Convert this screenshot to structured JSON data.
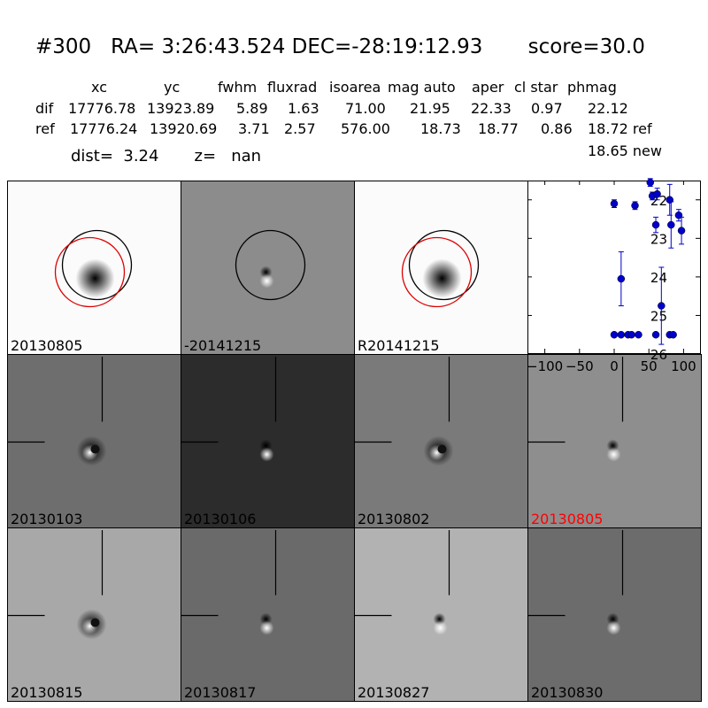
{
  "header": {
    "title": "#300   RA= 3:26:43.524 DEC=-28:19:12.93       score=30.0",
    "columns": [
      "xc",
      "yc",
      "fwhm",
      "fluxrad",
      "isoarea",
      "mag auto",
      "aper",
      "cl star",
      "phmag"
    ],
    "dif_label": "dif",
    "dif": [
      "17776.78",
      "13923.89",
      "5.89",
      "1.63",
      "71.00",
      "21.95",
      "22.33",
      "0.97",
      "22.12"
    ],
    "ref_label": "ref",
    "ref": [
      "17776.24",
      "13920.69",
      "3.71",
      "2.57",
      "576.00",
      "18.73",
      "18.77",
      "0.86",
      "18.72 ref"
    ],
    "phmag_new": "18.65 new",
    "dist_text": "dist=  3.24       z=   nan"
  },
  "stamps": {
    "top": [
      {
        "label": "20130805",
        "bg": "#fbfbfb",
        "type": "ref",
        "circles": [
          "black",
          "red"
        ]
      },
      {
        "label": "-20141215",
        "bg": "#8c8c8c",
        "type": "dipole",
        "circles": [
          "black"
        ]
      },
      {
        "label": "R20141215",
        "bg": "#fbfbfb",
        "type": "ref",
        "circles": [
          "black",
          "red"
        ]
      }
    ],
    "grid": [
      {
        "label": "20130103",
        "bg": "#6e6e6e",
        "type": "ring",
        "label_color": "#000000"
      },
      {
        "label": "20130106",
        "bg": "#2c2c2c",
        "type": "dipole",
        "label_color": "#000000"
      },
      {
        "label": "20130802",
        "bg": "#7a7a7a",
        "type": "ring",
        "label_color": "#000000"
      },
      {
        "label": "20130805",
        "bg": "#8e8e8e",
        "type": "dipole",
        "label_color": "#ff0000"
      },
      {
        "label": "20130815",
        "bg": "#a8a8a8",
        "type": "ring",
        "label_color": "#000000"
      },
      {
        "label": "20130817",
        "bg": "#6a6a6a",
        "type": "dipole",
        "label_color": "#000000"
      },
      {
        "label": "20130827",
        "bg": "#b2b2b2",
        "type": "dipole",
        "label_color": "#000000"
      },
      {
        "label": "20130830",
        "bg": "#6c6c6c",
        "type": "dipole",
        "label_color": "#000000"
      }
    ]
  },
  "chart_data": {
    "type": "scatter",
    "title": "",
    "xlabel": "",
    "ylabel": "",
    "xlim": [
      -125,
      125
    ],
    "ylim": [
      26,
      21.5
    ],
    "y_inverted": true,
    "xticks": [
      -100,
      -50,
      0,
      50,
      100
    ],
    "xtick_labels": [
      "−100",
      "−50",
      "0",
      "50",
      "100"
    ],
    "yticks": [
      22,
      23,
      24,
      25,
      26
    ],
    "color": "#0000cc",
    "points": [
      {
        "x": 0,
        "y": 22.1,
        "err": 0.1
      },
      {
        "x": 10,
        "y": 24.05,
        "err": 0.7
      },
      {
        "x": 30,
        "y": 22.15,
        "err": 0.1
      },
      {
        "x": 52,
        "y": 21.55,
        "err": 0.1
      },
      {
        "x": 55,
        "y": 21.9,
        "err": 0.1
      },
      {
        "x": 60,
        "y": 22.65,
        "err": 0.2
      },
      {
        "x": 62,
        "y": 21.85,
        "err": 0.15
      },
      {
        "x": 68,
        "y": 24.75,
        "err": 1.0
      },
      {
        "x": 80,
        "y": 22.0,
        "err": 0.4
      },
      {
        "x": 82,
        "y": 22.65,
        "err": 0.6
      },
      {
        "x": 93,
        "y": 22.4,
        "err": 0.15
      },
      {
        "x": 97,
        "y": 22.8,
        "err": 0.35
      },
      {
        "x": 0,
        "y": 25.5,
        "err": 0
      },
      {
        "x": 10,
        "y": 25.5,
        "err": 0
      },
      {
        "x": 20,
        "y": 25.5,
        "err": 0
      },
      {
        "x": 25,
        "y": 25.5,
        "err": 0
      },
      {
        "x": 35,
        "y": 25.5,
        "err": 0
      },
      {
        "x": 60,
        "y": 25.5,
        "err": 0
      },
      {
        "x": 80,
        "y": 25.5,
        "err": 0
      },
      {
        "x": 85,
        "y": 25.5,
        "err": 0
      }
    ]
  }
}
